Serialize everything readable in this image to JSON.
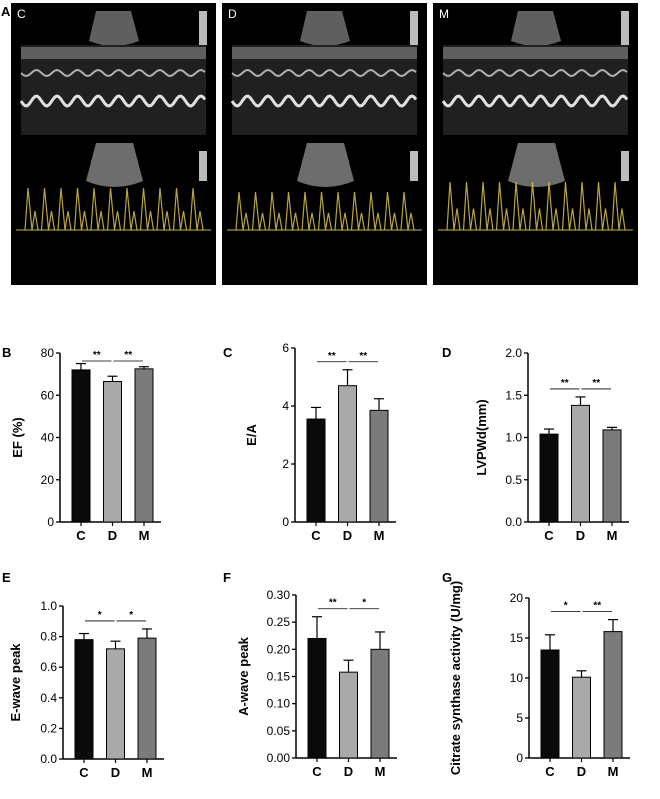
{
  "figure_panel_A": "A",
  "echo_panels": [
    {
      "label": "C"
    },
    {
      "label": "D"
    },
    {
      "label": "M"
    }
  ],
  "bar_colors": [
    "#0a0a0a",
    "#a9a9a9",
    "#7b7b7b"
  ],
  "chart_data": [
    {
      "panel": "B",
      "type": "bar",
      "categories": [
        "C",
        "D",
        "M"
      ],
      "values": [
        72,
        66.5,
        72.5
      ],
      "errors": [
        3,
        2.5,
        1
      ],
      "ylabel": "EF (%)",
      "ylim": [
        0,
        80
      ],
      "yticks": [
        "0",
        "20",
        "40",
        "60",
        "80"
      ],
      "significance": [
        {
          "from": 0,
          "to": 1,
          "label": "**"
        },
        {
          "from": 1,
          "to": 2,
          "label": "**"
        }
      ]
    },
    {
      "panel": "C",
      "type": "bar",
      "categories": [
        "C",
        "D",
        "M"
      ],
      "values": [
        3.55,
        4.7,
        3.85
      ],
      "errors": [
        0.4,
        0.55,
        0.4
      ],
      "ylabel": "E/A",
      "ylim": [
        0,
        6
      ],
      "yticks": [
        "0",
        "2",
        "4",
        "6"
      ],
      "significance": [
        {
          "from": 0,
          "to": 1,
          "label": "**"
        },
        {
          "from": 1,
          "to": 2,
          "label": "**"
        }
      ]
    },
    {
      "panel": "D",
      "type": "bar",
      "categories": [
        "C",
        "D",
        "M"
      ],
      "values": [
        1.04,
        1.38,
        1.09
      ],
      "errors": [
        0.06,
        0.1,
        0.03
      ],
      "ylabel": "LVPWd(mm)",
      "ylim": [
        0,
        2.0
      ],
      "yticks": [
        "0.0",
        "0.5",
        "1.0",
        "1.5",
        "2.0"
      ],
      "significance": [
        {
          "from": 0,
          "to": 1,
          "label": "**"
        },
        {
          "from": 1,
          "to": 2,
          "label": "**"
        }
      ]
    },
    {
      "panel": "E",
      "type": "bar",
      "categories": [
        "C",
        "D",
        "M"
      ],
      "values": [
        0.78,
        0.72,
        0.79
      ],
      "errors": [
        0.04,
        0.05,
        0.06
      ],
      "ylabel": "E-wave peak",
      "ylim": [
        0,
        1.0
      ],
      "yticks": [
        "0.0",
        "0.2",
        "0.4",
        "0.6",
        "0.8",
        "1.0"
      ],
      "significance": [
        {
          "from": 0,
          "to": 1,
          "label": "*"
        },
        {
          "from": 1,
          "to": 2,
          "label": "*"
        }
      ]
    },
    {
      "panel": "F",
      "type": "bar",
      "categories": [
        "C",
        "D",
        "M"
      ],
      "values": [
        0.22,
        0.158,
        0.2
      ],
      "errors": [
        0.04,
        0.022,
        0.032
      ],
      "ylabel": "A-wave peak",
      "ylim": [
        0,
        0.3
      ],
      "yticks": [
        "0.00",
        "0.05",
        "0.10",
        "0.15",
        "0.20",
        "0.25",
        "0.30"
      ],
      "significance": [
        {
          "from": 0,
          "to": 1,
          "label": "**"
        },
        {
          "from": 1,
          "to": 2,
          "label": "*"
        }
      ]
    },
    {
      "panel": "G",
      "type": "bar",
      "categories": [
        "C",
        "D",
        "M"
      ],
      "values": [
        13.5,
        10.1,
        15.8
      ],
      "errors": [
        1.9,
        0.8,
        1.5
      ],
      "ylabel": "Citrate synthase activity (U/mg)",
      "ylim": [
        0,
        20
      ],
      "yticks": [
        "0",
        "5",
        "10",
        "15",
        "20"
      ],
      "significance": [
        {
          "from": 0,
          "to": 1,
          "label": "*"
        },
        {
          "from": 1,
          "to": 2,
          "label": "**"
        }
      ]
    }
  ]
}
